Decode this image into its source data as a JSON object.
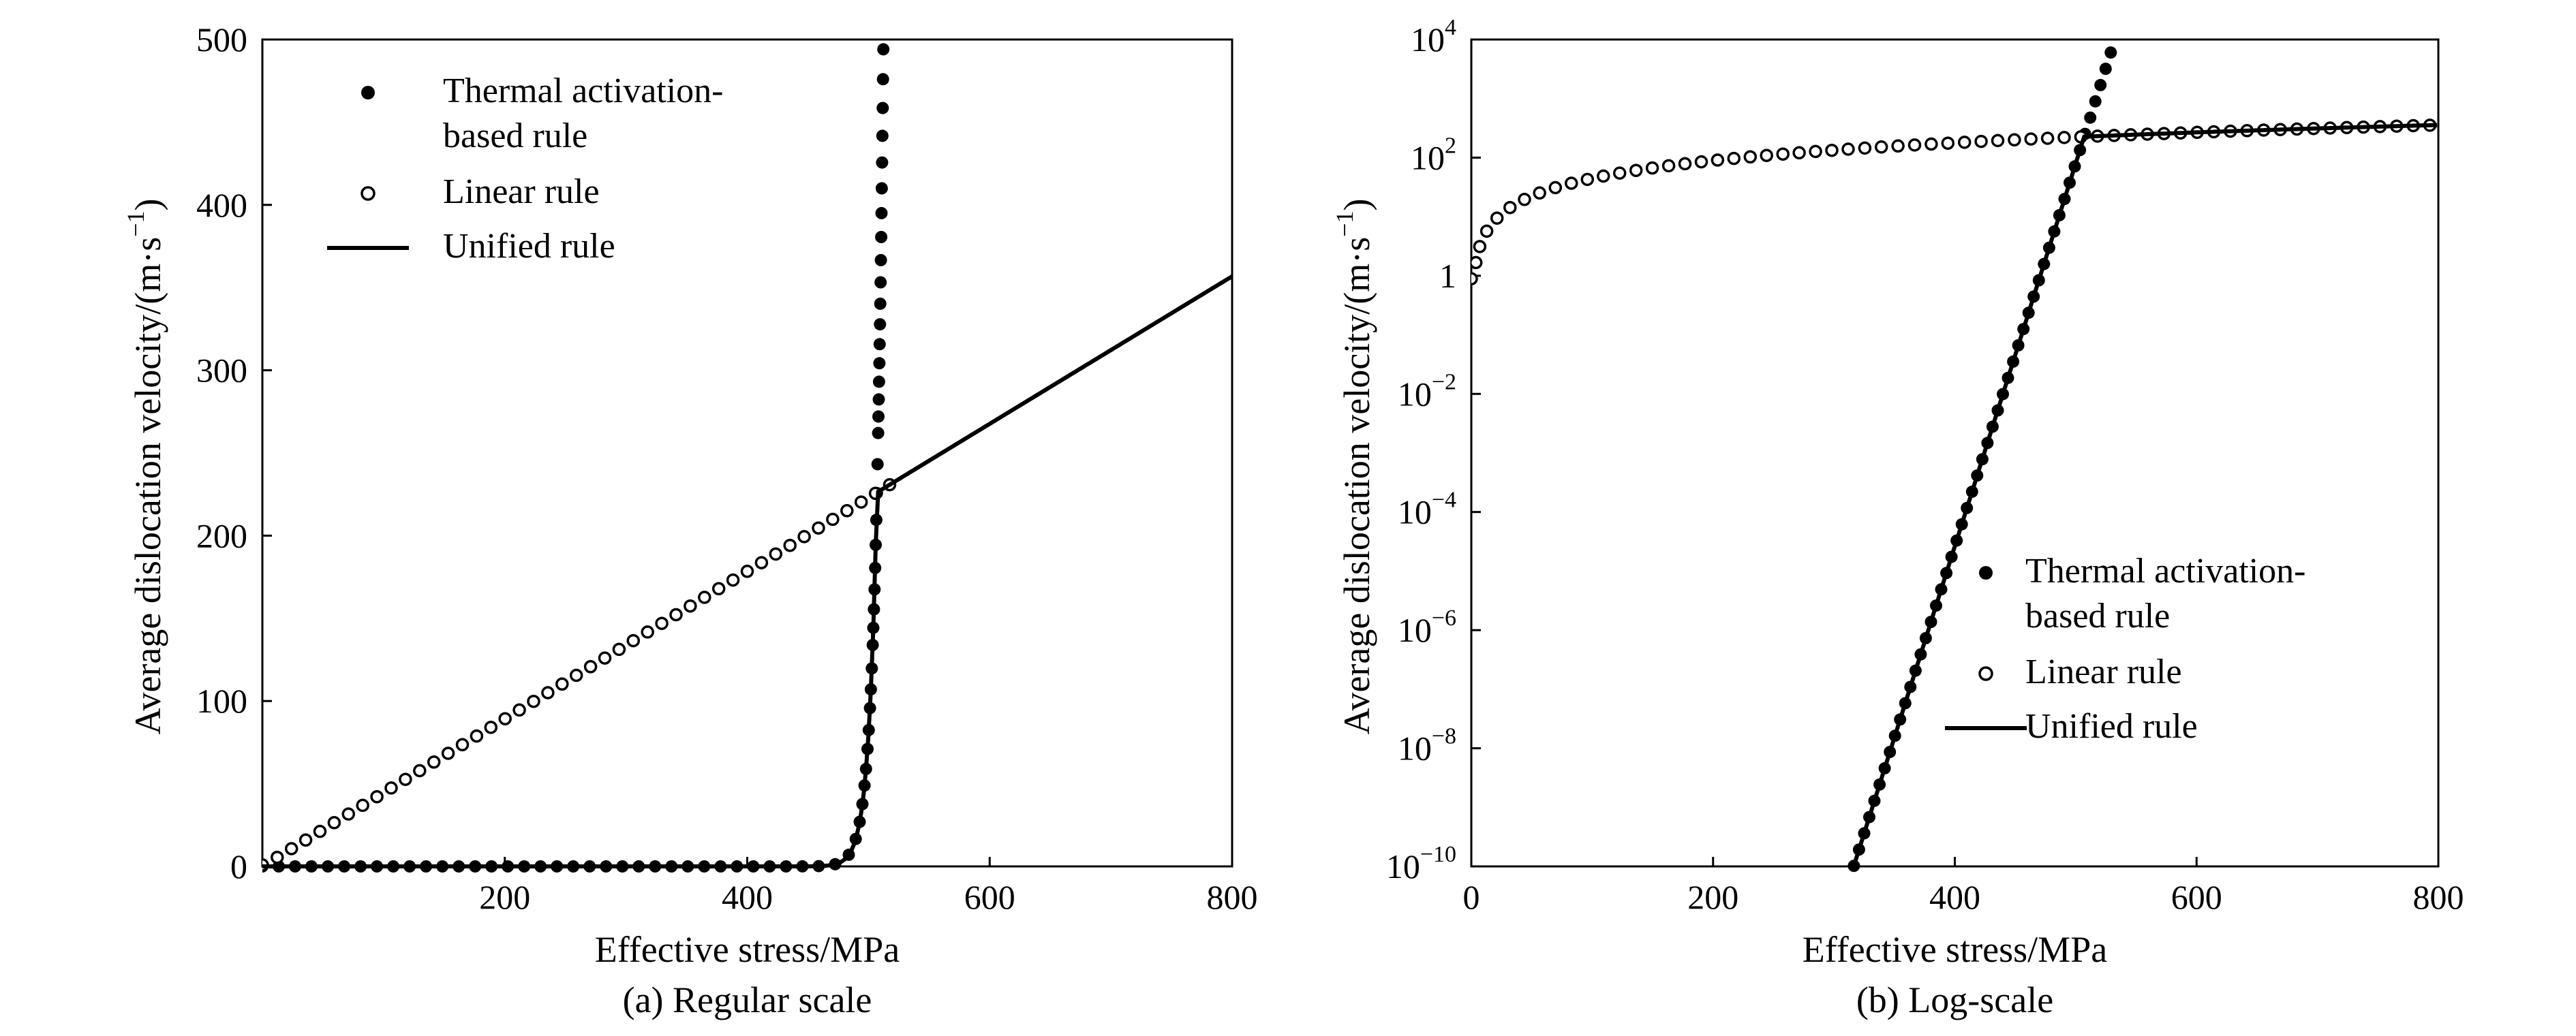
{
  "chart_data": [
    {
      "id": "a",
      "type": "scatter",
      "scale": "linear",
      "caption": "(a) Regular scale",
      "xlabel": "Effective stress/MPa",
      "ylabel_main": "Average dislocation velocity/(m·s",
      "ylabel_exp": "−1",
      "ylabel_close": ")",
      "xlim": [
        0,
        800
      ],
      "ylim": [
        0,
        500
      ],
      "xticks": [
        0,
        200,
        400,
        600,
        800
      ],
      "xtick_labels": [
        "",
        "200",
        "400",
        "600",
        "800"
      ],
      "yticks": [
        0,
        100,
        200,
        300,
        400,
        500
      ],
      "ytick_labels": [
        "0",
        "100",
        "200",
        "300",
        "400",
        "500"
      ],
      "legend_position": "top-left",
      "series": [
        {
          "name_lines": [
            "Thermal activation-",
            "based rule"
          ],
          "marker": "filled-circle",
          "x_range": [
            0,
            516
          ],
          "model": "thermal"
        },
        {
          "name_lines": [
            "Linear rule"
          ],
          "marker": "open-circle",
          "x_range": [
            0,
            520
          ],
          "model": "linear"
        },
        {
          "name_lines": [
            "Unified rule"
          ],
          "marker": "solid-line",
          "x_range": [
            0,
            800
          ],
          "model": "unified"
        }
      ],
      "model_params": {
        "linear_slope": 0.446,
        "thermal_log10_at_0": -30.5,
        "thermal_log10_per_mpa": 0.0648,
        "unified_saturation_velocity": 220,
        "unified_sharpness": 4
      }
    },
    {
      "id": "b",
      "type": "scatter",
      "scale": "log-y",
      "caption": "(b) Log-scale",
      "xlabel": "Effective stress/MPa",
      "ylabel_main": "Average dislocation velocity/(m·s",
      "ylabel_exp": "−1",
      "ylabel_close": ")",
      "xlim": [
        0,
        800
      ],
      "ylim_log10": [
        -10,
        4
      ],
      "xticks": [
        0,
        200,
        400,
        600,
        800
      ],
      "xtick_labels": [
        "0",
        "200",
        "400",
        "600",
        "800"
      ],
      "yticks_log10": [
        -10,
        -8,
        -6,
        -4,
        -2,
        0,
        2,
        4
      ],
      "ytick_labels": [
        {
          "base": "10",
          "exp": "−10"
        },
        {
          "base": "10",
          "exp": "−8"
        },
        {
          "base": "10",
          "exp": "−6"
        },
        {
          "base": "10",
          "exp": "−4"
        },
        {
          "base": "10",
          "exp": "−2"
        },
        {
          "base": "1",
          "exp": ""
        },
        {
          "base": "10",
          "exp": "2"
        },
        {
          "base": "10",
          "exp": "4"
        }
      ],
      "legend_position": "bottom-right",
      "series": [
        {
          "name_lines": [
            "Thermal activation-",
            "based rule"
          ],
          "marker": "filled-circle",
          "x_range": [
            175,
            546
          ],
          "model": "thermal"
        },
        {
          "name_lines": [
            "Linear rule"
          ],
          "marker": "open-circle",
          "x_range": [
            0,
            800
          ],
          "model": "linear"
        },
        {
          "name_lines": [
            "Unified rule"
          ],
          "marker": "solid-line",
          "x_range": [
            175,
            800
          ],
          "model": "unified"
        }
      ],
      "model_params": {
        "linear_slope": 0.446,
        "thermal_log10_at_0": -30.5,
        "thermal_log10_per_mpa": 0.0648,
        "unified_saturation_velocity": 220,
        "unified_sharpness": 4
      }
    }
  ]
}
